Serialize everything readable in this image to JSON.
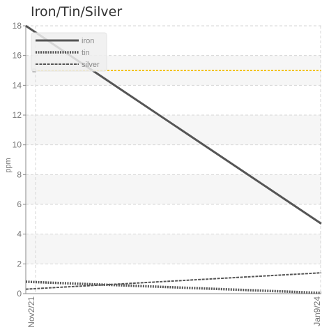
{
  "chart_data": {
    "type": "line",
    "title": "Iron/Tin/Silver",
    "xlabel": "",
    "ylabel": "ppm",
    "x": [
      "Nov2/21",
      "Jan9/24"
    ],
    "x_tick_labels": [
      "Nov2/21",
      "Jan9/24"
    ],
    "ylim": [
      0,
      18
    ],
    "y_ticks": [
      0,
      2,
      4,
      6,
      8,
      10,
      12,
      14,
      16,
      18
    ],
    "grid": true,
    "legend_position": "top-left",
    "threshold": {
      "value": 15,
      "color": "#f2c200"
    },
    "series": [
      {
        "name": "iron",
        "values": [
          18.0,
          4.7
        ],
        "color": "#555555",
        "style": "solid"
      },
      {
        "name": "tin",
        "values": [
          0.8,
          0.05
        ],
        "color": "#555555",
        "style": "dotted"
      },
      {
        "name": "silver",
        "values": [
          0.3,
          1.4
        ],
        "color": "#555555",
        "style": "dashed"
      }
    ]
  }
}
